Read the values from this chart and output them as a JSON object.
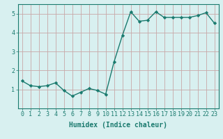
{
  "x": [
    0,
    1,
    2,
    3,
    4,
    5,
    6,
    7,
    8,
    9,
    10,
    11,
    12,
    13,
    14,
    15,
    16,
    17,
    18,
    19,
    20,
    21,
    22,
    23
  ],
  "y": [
    1.45,
    1.2,
    1.15,
    1.2,
    1.35,
    0.95,
    0.65,
    0.85,
    1.05,
    0.95,
    0.75,
    2.45,
    3.85,
    5.1,
    4.6,
    4.65,
    5.1,
    4.8,
    4.8,
    4.8,
    4.8,
    4.9,
    5.05,
    4.5
  ],
  "line_color": "#1a7a6e",
  "marker": "D",
  "marker_size": 2.2,
  "line_width": 1.0,
  "bg_color": "#d8f0f0",
  "grid_color": "#c8a8a8",
  "xlabel": "Humidex (Indice chaleur)",
  "xlabel_fontsize": 7,
  "tick_fontsize": 6,
  "ylim": [
    0,
    5.5
  ],
  "xlim": [
    -0.5,
    23.5
  ],
  "yticks": [
    1,
    2,
    3,
    4,
    5
  ],
  "xticks": [
    0,
    1,
    2,
    3,
    4,
    5,
    6,
    7,
    8,
    9,
    10,
    11,
    12,
    13,
    14,
    15,
    16,
    17,
    18,
    19,
    20,
    21,
    22,
    23
  ]
}
